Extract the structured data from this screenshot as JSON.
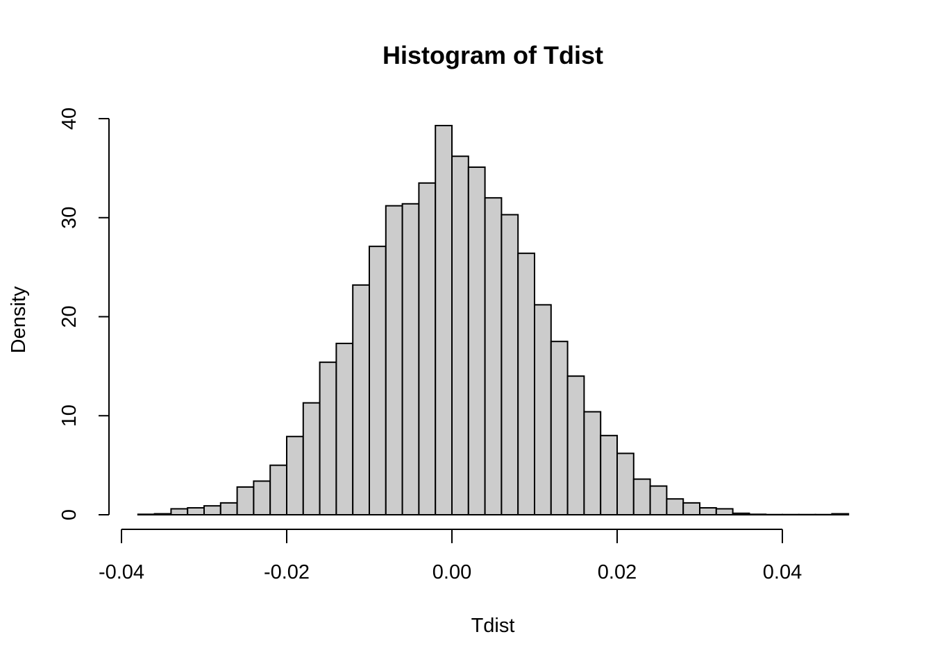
{
  "chart_data": {
    "type": "bar",
    "title": "Histogram of Tdist",
    "xlabel": "Tdist",
    "ylabel": "Density",
    "xlim": [
      -0.04,
      0.048
    ],
    "ylim": [
      0,
      40
    ],
    "x_ticks": [
      -0.04,
      -0.02,
      0.0,
      0.02,
      0.04
    ],
    "x_tick_labels": [
      "-0.04",
      "-0.02",
      "0.00",
      "0.02",
      "0.04"
    ],
    "y_ticks": [
      0,
      10,
      20,
      30,
      40
    ],
    "y_tick_labels": [
      "0",
      "10",
      "20",
      "30",
      "40"
    ],
    "bin_width": 0.002,
    "bin_start": -0.038,
    "bar_color": "#cccccc",
    "values": [
      0.05,
      0.1,
      0.6,
      0.7,
      0.9,
      1.2,
      2.8,
      3.4,
      5.0,
      7.9,
      11.3,
      15.4,
      17.3,
      23.2,
      27.1,
      31.2,
      31.4,
      33.5,
      39.3,
      36.2,
      35.1,
      32.0,
      30.3,
      26.4,
      21.2,
      17.5,
      14.0,
      10.4,
      8.0,
      6.2,
      3.6,
      2.9,
      1.6,
      1.2,
      0.7,
      0.6,
      0.15,
      0.05,
      0.02,
      0.02,
      0.02,
      0.02,
      0.1
    ],
    "grid": false
  }
}
